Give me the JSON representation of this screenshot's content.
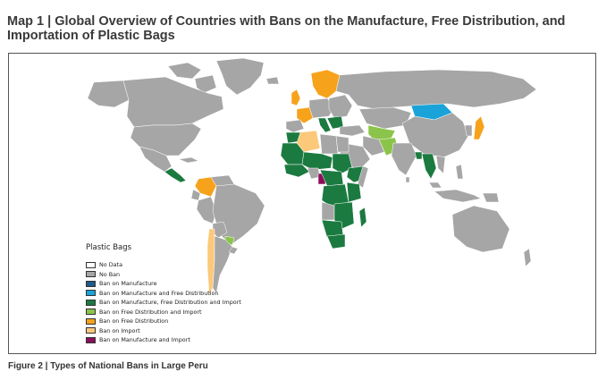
{
  "title": "Map 1 | Global Overview of Countries with Bans on the Manufacture, Free Distribution, and Importation of Plastic Bags",
  "legend": {
    "title": "Plastic Bags",
    "items": [
      {
        "label": "No Data",
        "color": "#ffffff"
      },
      {
        "label": "No Ban",
        "color": "#a6a6a6"
      },
      {
        "label": "Ban on Manufacture",
        "color": "#1f5a8a"
      },
      {
        "label": "Ban on Manufacture and Free Distribution",
        "color": "#1aa3d8"
      },
      {
        "label": "Ban on Manufacture, Free Distribution and Import",
        "color": "#1b7a40"
      },
      {
        "label": "Ban on Free Distribution and Import",
        "color": "#8bc44a"
      },
      {
        "label": "Ban on Free Distribution",
        "color": "#f7a21b"
      },
      {
        "label": "Ban on Import",
        "color": "#fcc97a"
      },
      {
        "label": "Ban on Manufacture and Import",
        "color": "#8b0e5a"
      }
    ]
  },
  "caption": "Figure 2 | Types of National Bans in Large Peru"
}
